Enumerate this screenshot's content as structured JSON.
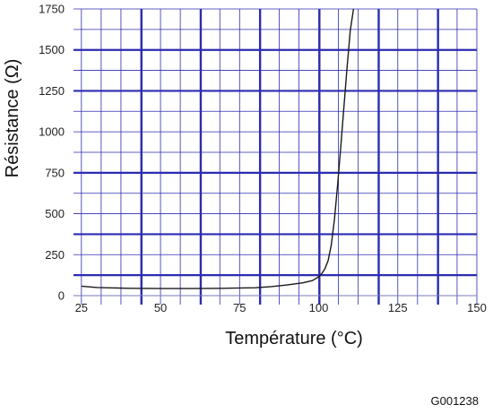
{
  "chart_data": {
    "type": "line",
    "xlabel": "Température (°C)",
    "ylabel": "Résistance (Ω)",
    "xlim": [
      22.5,
      150
    ],
    "ylim": [
      0,
      1750
    ],
    "x_ticks": [
      25,
      50,
      75,
      100,
      125,
      150
    ],
    "y_ticks": [
      0,
      250,
      500,
      750,
      1000,
      1250,
      1500,
      1750
    ],
    "grid": true,
    "series": [
      {
        "x": [
          25,
          30,
          40,
          50,
          60,
          70,
          80,
          85,
          90,
          95,
          98,
          100,
          101,
          102,
          103,
          104,
          105,
          106,
          107,
          108,
          109,
          110,
          111
        ],
        "y": [
          58,
          50,
          45,
          43,
          43,
          45,
          48,
          55,
          65,
          78,
          92,
          115,
          135,
          165,
          215,
          310,
          470,
          680,
          910,
          1160,
          1400,
          1620,
          1750
        ]
      }
    ]
  },
  "colors": {
    "grid": "#2c2cb0",
    "line": "#1a1a1a",
    "background": "#ffffff"
  },
  "figure_code": "G001238"
}
